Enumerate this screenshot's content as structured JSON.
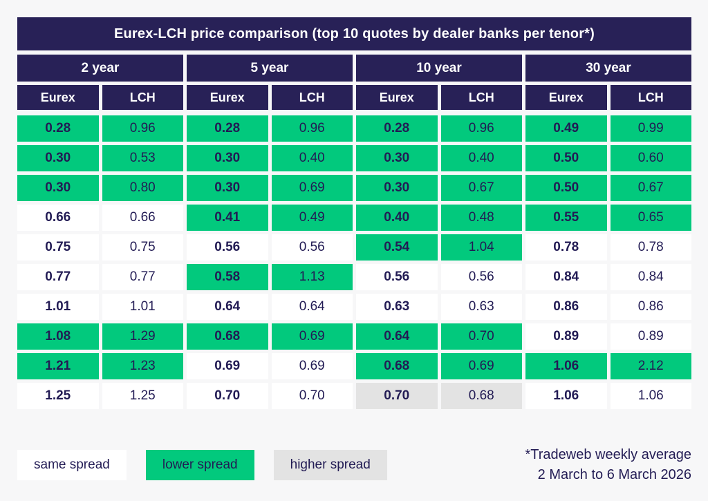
{
  "chart_data": {
    "type": "table",
    "title": "Eurex-LCH price comparison (top 10 quotes by dealer banks per tenor*)",
    "column_headers": [
      "Eurex",
      "LCH"
    ],
    "highlight_meaning": {
      "same": "same spread",
      "lower": "lower spread",
      "higher": "higher spread"
    },
    "groups": [
      {
        "tenor": "2 year",
        "rows": [
          {
            "eurex": "0.28",
            "lch": "0.96",
            "highlight": "lower"
          },
          {
            "eurex": "0.30",
            "lch": "0.53",
            "highlight": "lower"
          },
          {
            "eurex": "0.30",
            "lch": "0.80",
            "highlight": "lower"
          },
          {
            "eurex": "0.66",
            "lch": "0.66",
            "highlight": "same"
          },
          {
            "eurex": "0.75",
            "lch": "0.75",
            "highlight": "same"
          },
          {
            "eurex": "0.77",
            "lch": "0.77",
            "highlight": "same"
          },
          {
            "eurex": "1.01",
            "lch": "1.01",
            "highlight": "same"
          },
          {
            "eurex": "1.08",
            "lch": "1.29",
            "highlight": "lower"
          },
          {
            "eurex": "1.21",
            "lch": "1.23",
            "highlight": "lower"
          },
          {
            "eurex": "1.25",
            "lch": "1.25",
            "highlight": "same"
          }
        ]
      },
      {
        "tenor": "5 year",
        "rows": [
          {
            "eurex": "0.28",
            "lch": "0.96",
            "highlight": "lower"
          },
          {
            "eurex": "0.30",
            "lch": "0.40",
            "highlight": "lower"
          },
          {
            "eurex": "0.30",
            "lch": "0.69",
            "highlight": "lower"
          },
          {
            "eurex": "0.41",
            "lch": "0.49",
            "highlight": "lower"
          },
          {
            "eurex": "0.56",
            "lch": "0.56",
            "highlight": "same"
          },
          {
            "eurex": "0.58",
            "lch": "1.13",
            "highlight": "lower"
          },
          {
            "eurex": "0.64",
            "lch": "0.64",
            "highlight": "same"
          },
          {
            "eurex": "0.68",
            "lch": "0.69",
            "highlight": "lower"
          },
          {
            "eurex": "0.69",
            "lch": "0.69",
            "highlight": "same"
          },
          {
            "eurex": "0.70",
            "lch": "0.70",
            "highlight": "same"
          }
        ]
      },
      {
        "tenor": "10 year",
        "rows": [
          {
            "eurex": "0.28",
            "lch": "0.96",
            "highlight": "lower"
          },
          {
            "eurex": "0.30",
            "lch": "0.40",
            "highlight": "lower"
          },
          {
            "eurex": "0.30",
            "lch": "0.67",
            "highlight": "lower"
          },
          {
            "eurex": "0.40",
            "lch": "0.48",
            "highlight": "lower"
          },
          {
            "eurex": "0.54",
            "lch": "1.04",
            "highlight": "lower"
          },
          {
            "eurex": "0.56",
            "lch": "0.56",
            "highlight": "same"
          },
          {
            "eurex": "0.63",
            "lch": "0.63",
            "highlight": "same"
          },
          {
            "eurex": "0.64",
            "lch": "0.70",
            "highlight": "lower"
          },
          {
            "eurex": "0.68",
            "lch": "0.69",
            "highlight": "lower"
          },
          {
            "eurex": "0.70",
            "lch": "0.68",
            "highlight": "higher"
          }
        ]
      },
      {
        "tenor": "30 year",
        "rows": [
          {
            "eurex": "0.49",
            "lch": "0.99",
            "highlight": "lower"
          },
          {
            "eurex": "0.50",
            "lch": "0.60",
            "highlight": "lower"
          },
          {
            "eurex": "0.50",
            "lch": "0.67",
            "highlight": "lower"
          },
          {
            "eurex": "0.55",
            "lch": "0.65",
            "highlight": "lower"
          },
          {
            "eurex": "0.78",
            "lch": "0.78",
            "highlight": "same"
          },
          {
            "eurex": "0.84",
            "lch": "0.84",
            "highlight": "same"
          },
          {
            "eurex": "0.86",
            "lch": "0.86",
            "highlight": "same"
          },
          {
            "eurex": "0.89",
            "lch": "0.89",
            "highlight": "same"
          },
          {
            "eurex": "1.06",
            "lch": "2.12",
            "highlight": "lower"
          },
          {
            "eurex": "1.06",
            "lch": "1.06",
            "highlight": "same"
          }
        ]
      }
    ],
    "legend": [
      {
        "label": "same spread",
        "style": "same",
        "color": "#ffffff"
      },
      {
        "label": "lower spread",
        "style": "lower",
        "color": "#02c97d"
      },
      {
        "label": "higher spread",
        "style": "higher",
        "color": "#e3e3e3"
      }
    ],
    "footnote": [
      "*Tradeweb weekly average",
      "2 March to 6 March 2026"
    ],
    "colors": {
      "header_navy": "#282157",
      "text_navy": "#221b54",
      "green": "#02c97d",
      "gray": "#e3e3e3",
      "background": "#f7f7f8"
    }
  }
}
